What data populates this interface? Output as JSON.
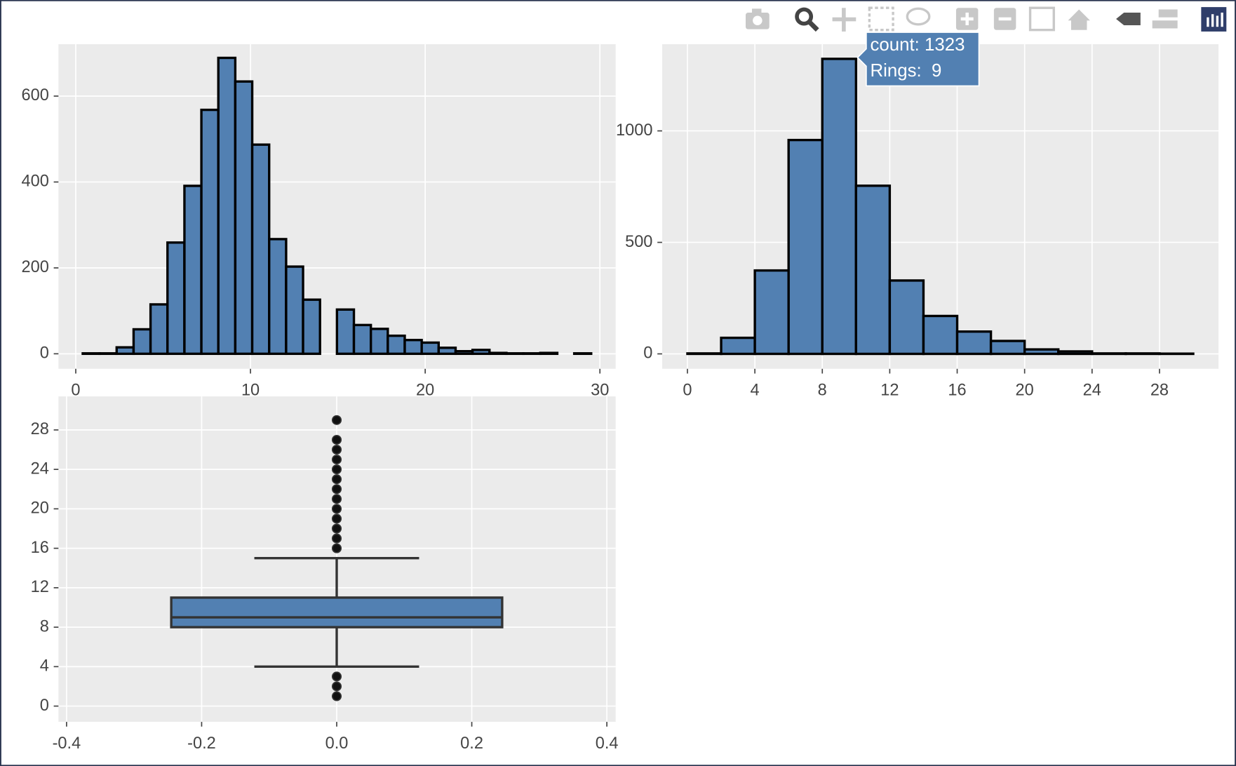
{
  "chart_data": [
    {
      "type": "histogram",
      "bins": [
        0.4,
        1.37,
        2.34,
        3.31,
        4.28,
        5.25,
        6.22,
        7.19,
        8.16,
        9.13,
        10.1,
        11.07,
        12.04,
        13.01,
        13.98,
        14.95,
        15.92,
        16.89,
        17.86,
        18.83,
        19.8,
        20.77,
        21.74,
        22.71,
        23.68,
        24.65,
        25.62,
        26.59,
        27.56,
        28.53,
        29.5
      ],
      "counts": [
        1,
        1,
        15,
        57,
        115,
        259,
        391,
        568,
        689,
        634,
        487,
        267,
        203,
        126,
        0,
        103,
        67,
        58,
        42,
        32,
        26,
        14,
        6,
        9,
        2,
        1,
        1,
        2,
        0,
        1
      ],
      "color": "#5280b2",
      "xlim": [
        -0.99,
        30.9
      ],
      "ylim": [
        -35,
        721
      ],
      "xticks": [
        0,
        10,
        20,
        30
      ],
      "yticks": [
        0,
        200,
        400,
        600
      ],
      "grid": true
    },
    {
      "type": "histogram",
      "bins": [
        0,
        2,
        4,
        6,
        8,
        10,
        12,
        14,
        16,
        18,
        20,
        22,
        24,
        26,
        28,
        30
      ],
      "counts": [
        2,
        72,
        374,
        959,
        1323,
        754,
        329,
        170,
        100,
        58,
        20,
        11,
        2,
        2,
        1
      ],
      "color": "#5280b2",
      "xlim": [
        -1.5,
        31.5
      ],
      "ylim": [
        -67,
        1389
      ],
      "xticks": [
        0,
        4,
        8,
        12,
        16,
        20,
        24,
        28
      ],
      "yticks": [
        0,
        500,
        1000
      ],
      "grid": true,
      "hover_label": [
        "count: 1323",
        "Rings:  9"
      ]
    },
    {
      "type": "box",
      "q1": 8,
      "median": 9,
      "q3": 11,
      "lowerfence": 4,
      "upperfence": 15,
      "outliers": [
        1,
        2,
        3,
        16,
        17,
        18,
        19,
        20,
        21,
        22,
        23,
        24,
        25,
        26,
        27,
        29
      ],
      "color": "#5280b2",
      "xlim": [
        -0.412,
        0.413
      ],
      "ylim": [
        -1.6,
        31.4
      ],
      "xticks": [
        -0.4,
        -0.2,
        {
          "value": 0,
          "label": "0.0"
        },
        0.2,
        0.4
      ],
      "yticks": [
        0,
        4,
        8,
        12,
        16,
        20,
        24,
        28
      ],
      "grid": true
    }
  ]
}
